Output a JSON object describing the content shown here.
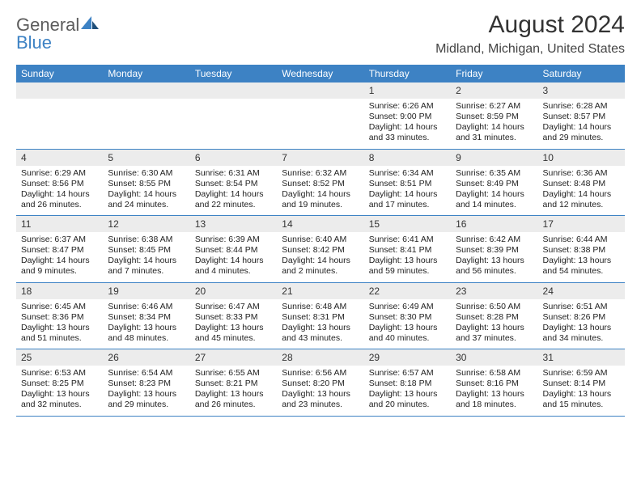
{
  "brand": {
    "general": "General",
    "blue": "Blue"
  },
  "title": "August 2024",
  "location": "Midland, Michigan, United States",
  "colors": {
    "header_bg": "#3d82c4",
    "header_text": "#ffffff",
    "daynum_bg": "#ececec",
    "page_bg": "#ffffff",
    "border": "#3d82c4",
    "text": "#222222",
    "logo_gray": "#5c5c5c",
    "logo_blue": "#3d82c4"
  },
  "weekdays": [
    "Sunday",
    "Monday",
    "Tuesday",
    "Wednesday",
    "Thursday",
    "Friday",
    "Saturday"
  ],
  "weeks": [
    [
      {
        "day": "",
        "lines": [
          "",
          "",
          "",
          ""
        ]
      },
      {
        "day": "",
        "lines": [
          "",
          "",
          "",
          ""
        ]
      },
      {
        "day": "",
        "lines": [
          "",
          "",
          "",
          ""
        ]
      },
      {
        "day": "",
        "lines": [
          "",
          "",
          "",
          ""
        ]
      },
      {
        "day": "1",
        "lines": [
          "Sunrise: 6:26 AM",
          "Sunset: 9:00 PM",
          "Daylight: 14 hours",
          "and 33 minutes."
        ]
      },
      {
        "day": "2",
        "lines": [
          "Sunrise: 6:27 AM",
          "Sunset: 8:59 PM",
          "Daylight: 14 hours",
          "and 31 minutes."
        ]
      },
      {
        "day": "3",
        "lines": [
          "Sunrise: 6:28 AM",
          "Sunset: 8:57 PM",
          "Daylight: 14 hours",
          "and 29 minutes."
        ]
      }
    ],
    [
      {
        "day": "4",
        "lines": [
          "Sunrise: 6:29 AM",
          "Sunset: 8:56 PM",
          "Daylight: 14 hours",
          "and 26 minutes."
        ]
      },
      {
        "day": "5",
        "lines": [
          "Sunrise: 6:30 AM",
          "Sunset: 8:55 PM",
          "Daylight: 14 hours",
          "and 24 minutes."
        ]
      },
      {
        "day": "6",
        "lines": [
          "Sunrise: 6:31 AM",
          "Sunset: 8:54 PM",
          "Daylight: 14 hours",
          "and 22 minutes."
        ]
      },
      {
        "day": "7",
        "lines": [
          "Sunrise: 6:32 AM",
          "Sunset: 8:52 PM",
          "Daylight: 14 hours",
          "and 19 minutes."
        ]
      },
      {
        "day": "8",
        "lines": [
          "Sunrise: 6:34 AM",
          "Sunset: 8:51 PM",
          "Daylight: 14 hours",
          "and 17 minutes."
        ]
      },
      {
        "day": "9",
        "lines": [
          "Sunrise: 6:35 AM",
          "Sunset: 8:49 PM",
          "Daylight: 14 hours",
          "and 14 minutes."
        ]
      },
      {
        "day": "10",
        "lines": [
          "Sunrise: 6:36 AM",
          "Sunset: 8:48 PM",
          "Daylight: 14 hours",
          "and 12 minutes."
        ]
      }
    ],
    [
      {
        "day": "11",
        "lines": [
          "Sunrise: 6:37 AM",
          "Sunset: 8:47 PM",
          "Daylight: 14 hours",
          "and 9 minutes."
        ]
      },
      {
        "day": "12",
        "lines": [
          "Sunrise: 6:38 AM",
          "Sunset: 8:45 PM",
          "Daylight: 14 hours",
          "and 7 minutes."
        ]
      },
      {
        "day": "13",
        "lines": [
          "Sunrise: 6:39 AM",
          "Sunset: 8:44 PM",
          "Daylight: 14 hours",
          "and 4 minutes."
        ]
      },
      {
        "day": "14",
        "lines": [
          "Sunrise: 6:40 AM",
          "Sunset: 8:42 PM",
          "Daylight: 14 hours",
          "and 2 minutes."
        ]
      },
      {
        "day": "15",
        "lines": [
          "Sunrise: 6:41 AM",
          "Sunset: 8:41 PM",
          "Daylight: 13 hours",
          "and 59 minutes."
        ]
      },
      {
        "day": "16",
        "lines": [
          "Sunrise: 6:42 AM",
          "Sunset: 8:39 PM",
          "Daylight: 13 hours",
          "and 56 minutes."
        ]
      },
      {
        "day": "17",
        "lines": [
          "Sunrise: 6:44 AM",
          "Sunset: 8:38 PM",
          "Daylight: 13 hours",
          "and 54 minutes."
        ]
      }
    ],
    [
      {
        "day": "18",
        "lines": [
          "Sunrise: 6:45 AM",
          "Sunset: 8:36 PM",
          "Daylight: 13 hours",
          "and 51 minutes."
        ]
      },
      {
        "day": "19",
        "lines": [
          "Sunrise: 6:46 AM",
          "Sunset: 8:34 PM",
          "Daylight: 13 hours",
          "and 48 minutes."
        ]
      },
      {
        "day": "20",
        "lines": [
          "Sunrise: 6:47 AM",
          "Sunset: 8:33 PM",
          "Daylight: 13 hours",
          "and 45 minutes."
        ]
      },
      {
        "day": "21",
        "lines": [
          "Sunrise: 6:48 AM",
          "Sunset: 8:31 PM",
          "Daylight: 13 hours",
          "and 43 minutes."
        ]
      },
      {
        "day": "22",
        "lines": [
          "Sunrise: 6:49 AM",
          "Sunset: 8:30 PM",
          "Daylight: 13 hours",
          "and 40 minutes."
        ]
      },
      {
        "day": "23",
        "lines": [
          "Sunrise: 6:50 AM",
          "Sunset: 8:28 PM",
          "Daylight: 13 hours",
          "and 37 minutes."
        ]
      },
      {
        "day": "24",
        "lines": [
          "Sunrise: 6:51 AM",
          "Sunset: 8:26 PM",
          "Daylight: 13 hours",
          "and 34 minutes."
        ]
      }
    ],
    [
      {
        "day": "25",
        "lines": [
          "Sunrise: 6:53 AM",
          "Sunset: 8:25 PM",
          "Daylight: 13 hours",
          "and 32 minutes."
        ]
      },
      {
        "day": "26",
        "lines": [
          "Sunrise: 6:54 AM",
          "Sunset: 8:23 PM",
          "Daylight: 13 hours",
          "and 29 minutes."
        ]
      },
      {
        "day": "27",
        "lines": [
          "Sunrise: 6:55 AM",
          "Sunset: 8:21 PM",
          "Daylight: 13 hours",
          "and 26 minutes."
        ]
      },
      {
        "day": "28",
        "lines": [
          "Sunrise: 6:56 AM",
          "Sunset: 8:20 PM",
          "Daylight: 13 hours",
          "and 23 minutes."
        ]
      },
      {
        "day": "29",
        "lines": [
          "Sunrise: 6:57 AM",
          "Sunset: 8:18 PM",
          "Daylight: 13 hours",
          "and 20 minutes."
        ]
      },
      {
        "day": "30",
        "lines": [
          "Sunrise: 6:58 AM",
          "Sunset: 8:16 PM",
          "Daylight: 13 hours",
          "and 18 minutes."
        ]
      },
      {
        "day": "31",
        "lines": [
          "Sunrise: 6:59 AM",
          "Sunset: 8:14 PM",
          "Daylight: 13 hours",
          "and 15 minutes."
        ]
      }
    ]
  ]
}
